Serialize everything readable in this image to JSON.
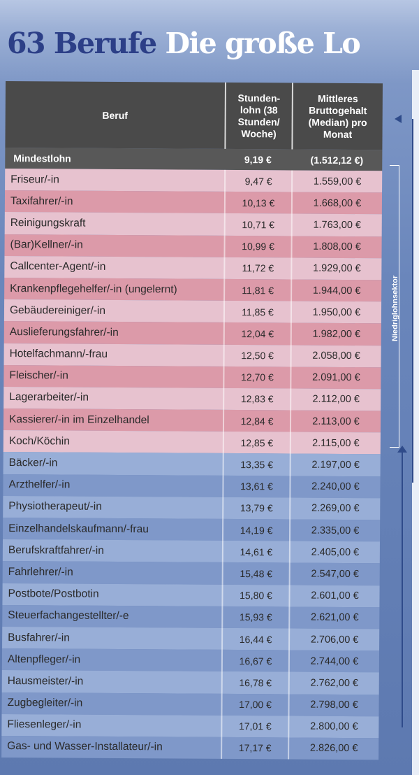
{
  "headline": {
    "part1": "63 Berufe",
    "part2": "Die große Lo"
  },
  "table": {
    "headers": {
      "beruf": "Beruf",
      "stundenlohn": "Stunden-lohn (38 Stunden/ Woche)",
      "gehalt": "Mittleres Bruttogehalt (Median) pro Monat"
    },
    "mindestlohn": {
      "label": "Mindestlohn",
      "stundenlohn": "9,19 €",
      "gehalt": "(1.512,12 €)"
    },
    "rows": [
      {
        "beruf": "Friseur/-in",
        "stundenlohn": "9,47 €",
        "gehalt": "1.559,00 €",
        "sector": "low"
      },
      {
        "beruf": "Taxifahrer/-in",
        "stundenlohn": "10,13 €",
        "gehalt": "1.668,00 €",
        "sector": "low"
      },
      {
        "beruf": "Reinigungskraft",
        "stundenlohn": "10,71 €",
        "gehalt": "1.763,00 €",
        "sector": "low"
      },
      {
        "beruf": "(Bar)Kellner/-in",
        "stundenlohn": "10,99 €",
        "gehalt": "1.808,00 €",
        "sector": "low"
      },
      {
        "beruf": "Callcenter-Agent/-in",
        "stundenlohn": "11,72 €",
        "gehalt": "1.929,00 €",
        "sector": "low"
      },
      {
        "beruf": "Krankenpflegehelfer/-in (ungelernt)",
        "stundenlohn": "11,81 €",
        "gehalt": "1.944,00 €",
        "sector": "low"
      },
      {
        "beruf": "Gebäudereiniger/-in",
        "stundenlohn": "11,85 €",
        "gehalt": "1.950,00 €",
        "sector": "low"
      },
      {
        "beruf": "Auslieferungsfahrer/-in",
        "stundenlohn": "12,04 €",
        "gehalt": "1.982,00 €",
        "sector": "low"
      },
      {
        "beruf": "Hotelfachmann/-frau",
        "stundenlohn": "12,50 €",
        "gehalt": "2.058,00 €",
        "sector": "low"
      },
      {
        "beruf": "Fleischer/-in",
        "stundenlohn": "12,70 €",
        "gehalt": "2.091,00 €",
        "sector": "low"
      },
      {
        "beruf": "Lagerarbeiter/-in",
        "stundenlohn": "12,83 €",
        "gehalt": "2.112,00 €",
        "sector": "low"
      },
      {
        "beruf": "Kassierer/-in im Einzelhandel",
        "stundenlohn": "12,84 €",
        "gehalt": "2.113,00 €",
        "sector": "low"
      },
      {
        "beruf": "Koch/Köchin",
        "stundenlohn": "12,85 €",
        "gehalt": "2.115,00 €",
        "sector": "low"
      },
      {
        "beruf": "Bäcker/-in",
        "stundenlohn": "13,35 €",
        "gehalt": "2.197,00 €",
        "sector": "high"
      },
      {
        "beruf": "Arzthelfer/-in",
        "stundenlohn": "13,61 €",
        "gehalt": "2.240,00 €",
        "sector": "high"
      },
      {
        "beruf": "Physiotherapeut/-in",
        "stundenlohn": "13,79 €",
        "gehalt": "2.269,00 €",
        "sector": "high"
      },
      {
        "beruf": "Einzelhandelskaufmann/-frau",
        "stundenlohn": "14,19 €",
        "gehalt": "2.335,00 €",
        "sector": "high"
      },
      {
        "beruf": "Berufskraftfahrer/-in",
        "stundenlohn": "14,61 €",
        "gehalt": "2.405,00 €",
        "sector": "high"
      },
      {
        "beruf": "Fahrlehrer/-in",
        "stundenlohn": "15,48 €",
        "gehalt": "2.547,00 €",
        "sector": "high"
      },
      {
        "beruf": "Postbote/Postbotin",
        "stundenlohn": "15,80 €",
        "gehalt": "2.601,00 €",
        "sector": "high"
      },
      {
        "beruf": "Steuerfachangestellter/-e",
        "stundenlohn": "15,93 €",
        "gehalt": "2.621,00 €",
        "sector": "high"
      },
      {
        "beruf": "Busfahrer/-in",
        "stundenlohn": "16,44 €",
        "gehalt": "2.706,00 €",
        "sector": "high"
      },
      {
        "beruf": "Altenpfleger/-in",
        "stundenlohn": "16,67 €",
        "gehalt": "2.744,00 €",
        "sector": "high"
      },
      {
        "beruf": "Hausmeister/-in",
        "stundenlohn": "16,78 €",
        "gehalt": "2.762,00 €",
        "sector": "high"
      },
      {
        "beruf": "Zugbegleiter/-in",
        "stundenlohn": "17,00 €",
        "gehalt": "2.798,00 €",
        "sector": "high"
      },
      {
        "beruf": "Fliesenleger/-in",
        "stundenlohn": "17,01 €",
        "gehalt": "2.800,00 €",
        "sector": "high"
      },
      {
        "beruf": "Gas- und Wasser-Installateur/-in",
        "stundenlohn": "17,17 €",
        "gehalt": "2.826,00 €",
        "sector": "high"
      }
    ]
  },
  "sector_label": "Niedriglohnsektor",
  "colors": {
    "low_light": "#e7c2cf",
    "low_dark": "#dc9aa9",
    "high_light": "#7f98c9",
    "high_dark": "#98aed7",
    "header": "#4a4a4a",
    "headline_blue": "#2c3f87"
  }
}
